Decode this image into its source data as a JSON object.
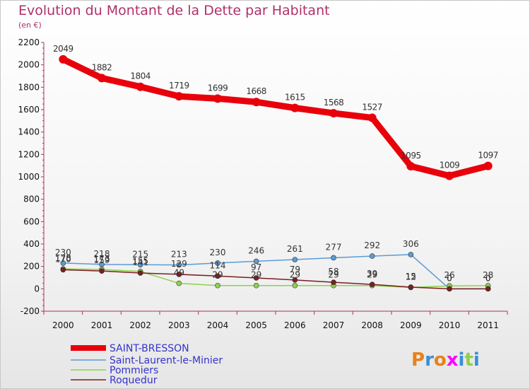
{
  "chart_data": {
    "type": "line",
    "title": "Evolution du Montant de la Dette par Habitant",
    "subtitle": "(en €)",
    "x": [
      "2000",
      "2001",
      "2002",
      "2003",
      "2004",
      "2005",
      "2006",
      "2007",
      "2008",
      "2009",
      "2010",
      "2011"
    ],
    "ylim": [
      -200,
      2200
    ],
    "yticks": [
      -200,
      0,
      200,
      400,
      600,
      800,
      1000,
      1200,
      1400,
      1600,
      1800,
      2000,
      2200
    ],
    "grid": false,
    "legend_position": "bottom-left",
    "series": [
      {
        "name": "SAINT-BRESSON",
        "color": "#e8000b",
        "width": 9,
        "marker_r": 6,
        "values": [
          2049,
          1882,
          1804,
          1719,
          1699,
          1668,
          1615,
          1568,
          1527,
          1095,
          1009,
          1097
        ],
        "labels": [
          "2049",
          "1882",
          "1804",
          "1719",
          "1699",
          "1668",
          "1615",
          "1568",
          "1527",
          "1095",
          "1009",
          "1097"
        ]
      },
      {
        "name": "Saint-Laurent-le-Minier",
        "color": "#5b9bd5",
        "width": 1.5,
        "marker_r": 3.5,
        "values": [
          230,
          218,
          215,
          213,
          230,
          246,
          261,
          277,
          292,
          306,
          0,
          0
        ],
        "labels": [
          "230",
          "218",
          "215",
          "213",
          "230",
          "246",
          "261",
          "277",
          "292",
          "306",
          "0",
          "0"
        ]
      },
      {
        "name": "Pommiers",
        "color": "#8ed14a",
        "width": 1.5,
        "marker_r": 3.5,
        "values": [
          178,
          173,
          155,
          49,
          29,
          29,
          29,
          29,
          29,
          12,
          26,
          28
        ],
        "labels": [
          "178",
          "173",
          "155",
          "49",
          "29",
          "29",
          "29",
          "29",
          "29",
          "12",
          "26",
          "28"
        ]
      },
      {
        "name": "Roquedur",
        "color": "#7a1f1f",
        "width": 1.5,
        "marker_r": 3.5,
        "values": [
          170,
          159,
          141,
          129,
          114,
          97,
          79,
          58,
          39,
          15,
          0,
          0
        ],
        "labels": [
          "170",
          "159",
          "141",
          "129",
          "114",
          "97",
          "79",
          "58",
          "39",
          "15",
          "0",
          "0"
        ]
      }
    ]
  },
  "brand": {
    "text": "Proxiti",
    "colors": [
      "#e8811a",
      "#3a8fd6",
      "#e8811a",
      "#ff00ff",
      "#3a8fd6",
      "#8ed14a",
      "#3a8fd6"
    ]
  }
}
